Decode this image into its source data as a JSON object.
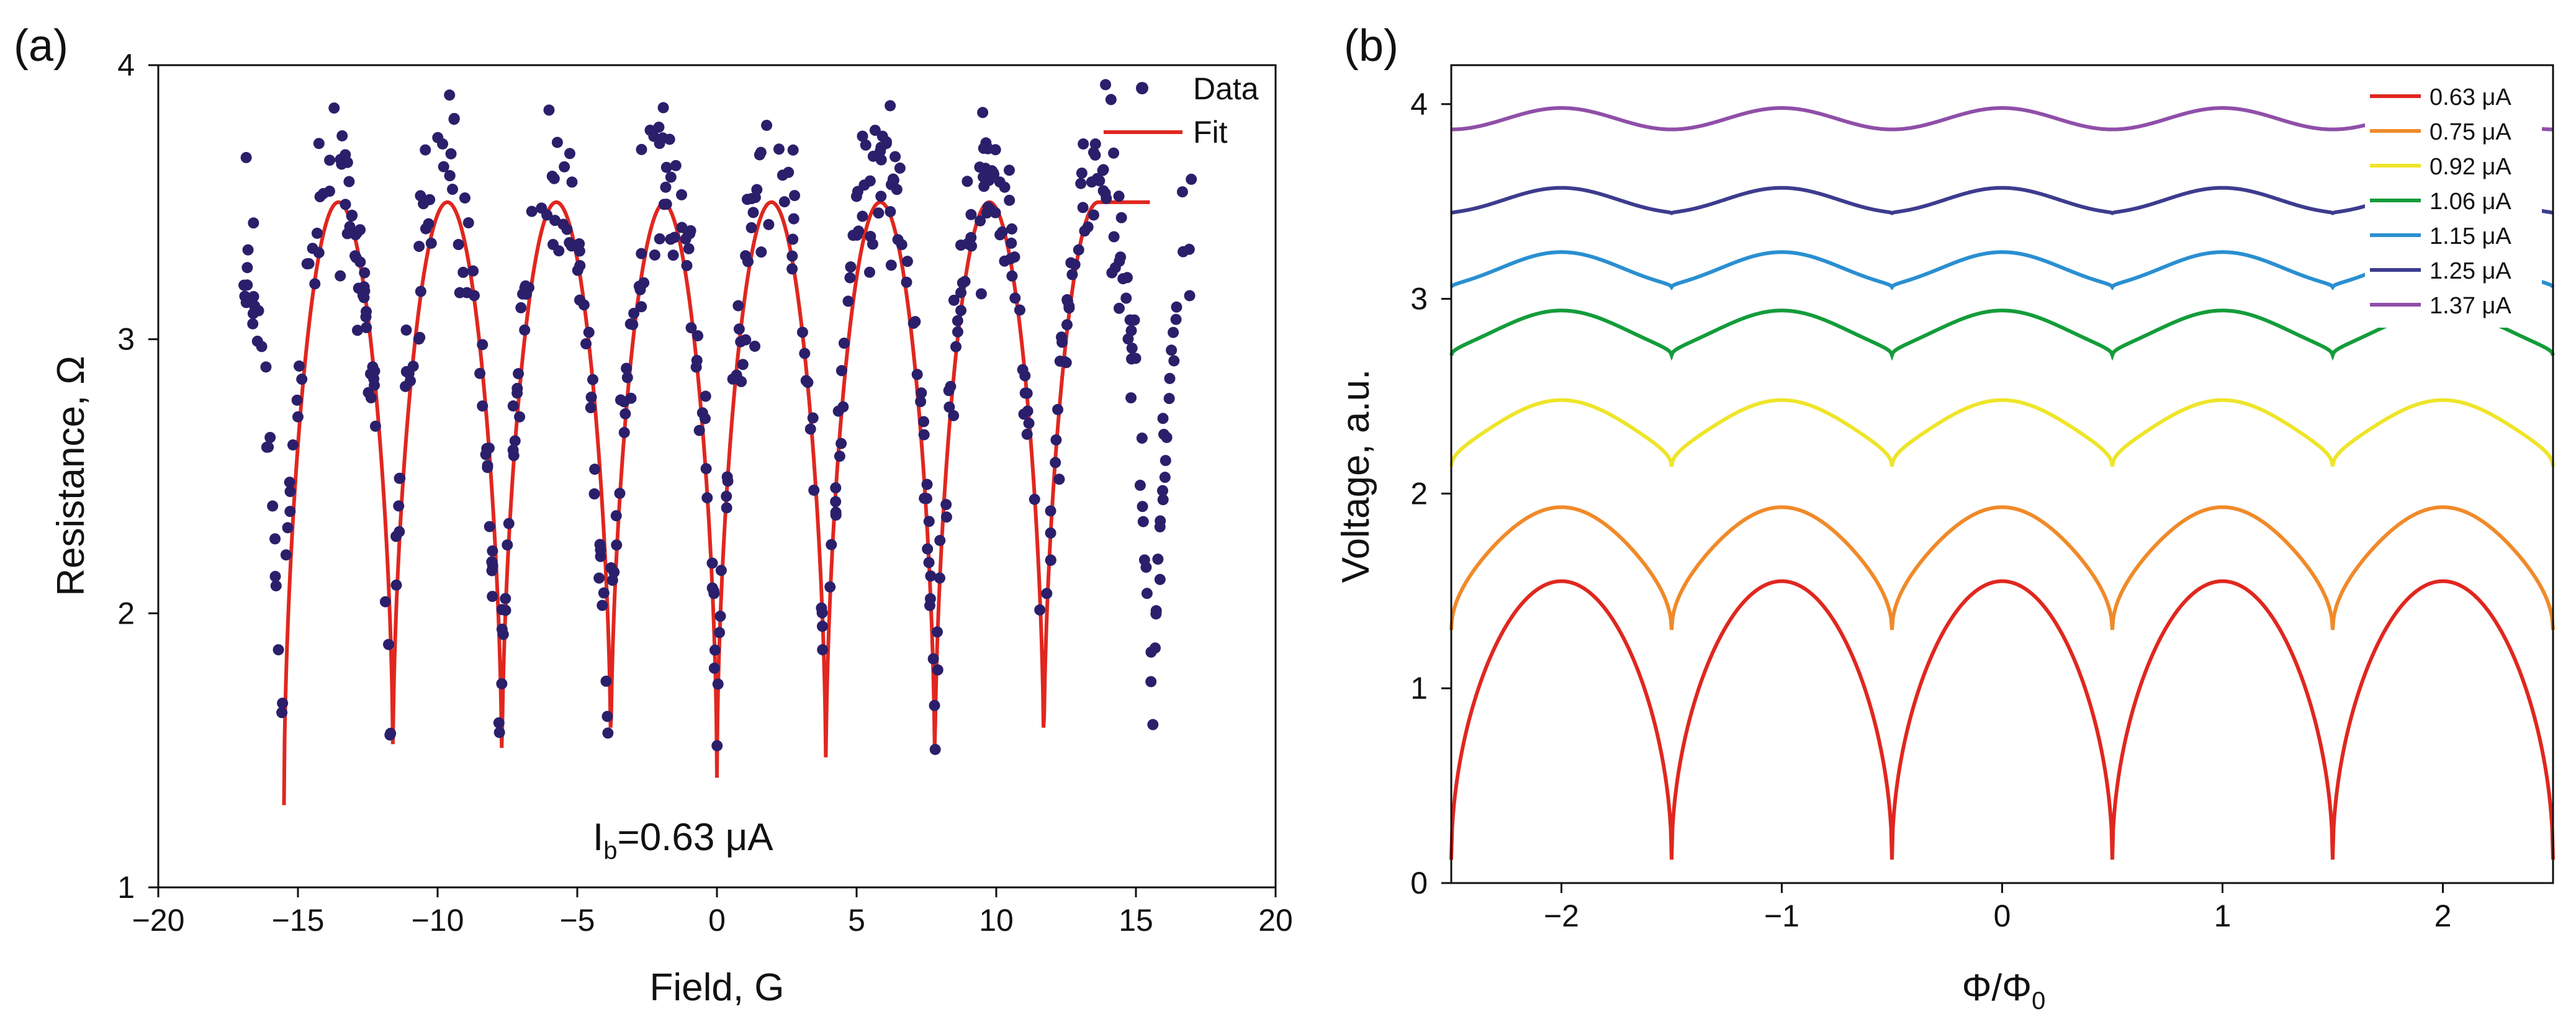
{
  "chart_data": [
    {
      "panel_label": "(a)",
      "type": "scatter",
      "title": "",
      "xlabel": "Field, G",
      "ylabel": "Resistance, Ω",
      "xlim": [
        -20,
        20
      ],
      "ylim": [
        1,
        4
      ],
      "xticks": [
        "−20",
        "−15",
        "−10",
        "−5",
        "0",
        "5",
        "10",
        "15",
        "20"
      ],
      "xtick_values": [
        -20,
        -15,
        -10,
        -5,
        0,
        5,
        10,
        15,
        20
      ],
      "yticks": [
        "1",
        "2",
        "3",
        "4"
      ],
      "ytick_values": [
        1,
        2,
        3,
        4
      ],
      "annotation": {
        "prefix": "I",
        "sub": "b",
        "suffix": "=0.63 μA"
      },
      "legend": [
        {
          "label": "Data",
          "marker": "dot",
          "color": "#2b1f6b"
        },
        {
          "label": "Fit",
          "marker": "line",
          "color": "#e0271f"
        }
      ],
      "series": [
        {
          "name": "Data",
          "kind": "scatter",
          "color": "#2b1f6b",
          "model": {
            "x_range": [
              -17,
              17
            ],
            "n": 560,
            "period": 3.9,
            "center": 0,
            "min": 1.45,
            "max": 3.6,
            "noise": 0.28
          }
        },
        {
          "name": "Fit",
          "kind": "line",
          "color": "#e0271f",
          "x_range": [
            -15.5,
            15.5
          ],
          "period": 3.9,
          "min": [
            1.3,
            1.45,
            1.4,
            1.45,
            1.4,
            1.4,
            1.4,
            1.45
          ],
          "max": 3.5,
          "minima_x": [
            -15.5,
            -11.6,
            -7.7,
            -3.8,
            0,
            3.9,
            7.8,
            11.7
          ]
        }
      ]
    },
    {
      "panel_label": "(b)",
      "type": "line",
      "title": "",
      "xlabel": "Φ/Φ",
      "xlabel_sub": "0",
      "ylabel": "Voltage, a.u.",
      "xlim": [
        -2.5,
        2.5
      ],
      "ylim": [
        0,
        4.2
      ],
      "xticks": [
        "−2",
        "−1",
        "0",
        "1",
        "2"
      ],
      "xtick_values": [
        -2,
        -1,
        0,
        1,
        2
      ],
      "yticks": [
        "0",
        "1",
        "2",
        "3",
        "4"
      ],
      "ytick_values": [
        0,
        1,
        2,
        3,
        4
      ],
      "series": [
        {
          "name": "0.63 μA",
          "color": "#e0271f",
          "min": 0.12,
          "max": 1.55
        },
        {
          "name": "0.75 μA",
          "color": "#f08a2a",
          "min": 1.3,
          "max": 1.93
        },
        {
          "name": "0.92 μA",
          "color": "#eee52a",
          "min": 2.14,
          "max": 2.48
        },
        {
          "name": "1.06 μA",
          "color": "#149c3a",
          "min": 2.71,
          "max": 2.94
        },
        {
          "name": "1.15 μA",
          "color": "#2a8fd0",
          "min": 3.06,
          "max": 3.24
        },
        {
          "name": "1.25 μA",
          "color": "#3d3c8e",
          "min": 3.44,
          "max": 3.57
        },
        {
          "name": "1.37 μA",
          "color": "#8f4fa8",
          "min": 3.87,
          "max": 3.98
        }
      ]
    }
  ]
}
